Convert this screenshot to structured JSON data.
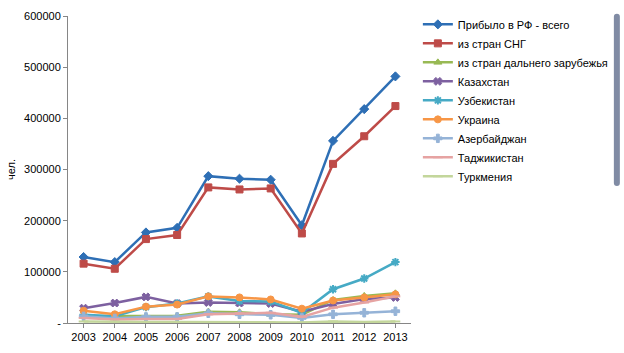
{
  "chart_data": {
    "type": "line",
    "y_label": "чел.",
    "categories": [
      "2003",
      "2004",
      "2005",
      "2006",
      "2007",
      "2008",
      "2009",
      "2010",
      "2011",
      "2012",
      "2013"
    ],
    "ylim": [
      0,
      600000
    ],
    "yticks": [
      {
        "value": 0,
        "label": "-"
      },
      100000,
      200000,
      300000,
      400000,
      500000,
      600000
    ],
    "grid": false,
    "legend": "right",
    "series": [
      {
        "name": "Прибыло в РФ - всего",
        "color": "#2e6fb5",
        "marker": "diamond",
        "values": [
          129000,
          119000,
          177000,
          186000,
          287000,
          282000,
          280000,
          191000,
          356000,
          418000,
          482000
        ]
      },
      {
        "name": "из стран СНГ",
        "color": "#be4b48",
        "marker": "square",
        "values": [
          116000,
          106000,
          164000,
          172000,
          265000,
          261000,
          263000,
          175000,
          311000,
          365000,
          424000
        ]
      },
      {
        "name": "из стран дальнего зарубежья",
        "color": "#98b954",
        "marker": "triangle-up",
        "values": [
          13000,
          13000,
          13000,
          14000,
          22000,
          21000,
          17000,
          16000,
          45000,
          53000,
          58000
        ]
      },
      {
        "name": "Казахстан",
        "color": "#7d60a0",
        "marker": "x",
        "values": [
          29000,
          39000,
          51000,
          38000,
          40000,
          39000,
          38000,
          22000,
          37000,
          47000,
          50000
        ]
      },
      {
        "name": "Узбекистан",
        "color": "#46aac5",
        "marker": "asterisk",
        "values": [
          16000,
          13000,
          31000,
          38000,
          52000,
          43000,
          42000,
          20000,
          66000,
          87000,
          119000
        ]
      },
      {
        "name": "Украина",
        "color": "#f79646",
        "marker": "circle",
        "values": [
          24000,
          17000,
          32000,
          36000,
          52000,
          50000,
          46000,
          28000,
          44000,
          50000,
          56000
        ]
      },
      {
        "name": "Азербайджан",
        "color": "#95b3d7",
        "marker": "cross",
        "values": [
          13000,
          9000,
          12000,
          12000,
          19000,
          17000,
          16000,
          10000,
          17000,
          20000,
          23000
        ]
      },
      {
        "name": "Таджикистан",
        "color": "#e6a3a2",
        "marker": "line-ew",
        "values": [
          10000,
          7000,
          8000,
          8000,
          17000,
          19000,
          20000,
          12000,
          30000,
          40000,
          52000
        ]
      },
      {
        "name": "Туркмения",
        "color": "#c3d69b",
        "marker": "line-ew",
        "values": [
          3000,
          2000,
          2000,
          2000,
          1500,
          1500,
          1500,
          1000,
          3000,
          2000,
          3000
        ]
      }
    ]
  }
}
